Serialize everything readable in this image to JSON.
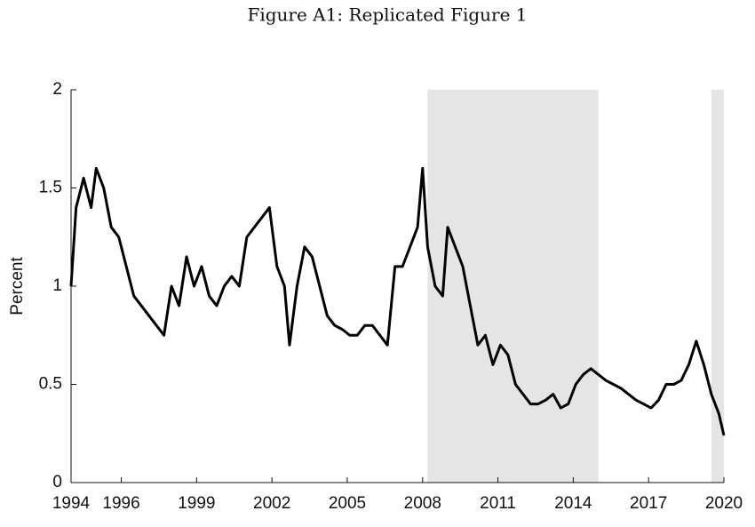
{
  "chart_data": {
    "type": "line",
    "title": "Figure A1: Replicated Figure 1",
    "y_label": "Percent",
    "xlim": [
      1994,
      2020
    ],
    "xticks": [
      1994,
      1996,
      1999,
      2002,
      2005,
      2008,
      2011,
      2014,
      2017,
      2020
    ],
    "ylim": [
      0,
      2
    ],
    "yticks": [
      0,
      0.5,
      1,
      1.5,
      2
    ],
    "shaded": [
      [
        2008.2,
        2015.0
      ],
      [
        2019.5,
        2020
      ]
    ],
    "shade_color": "#e5e5e5",
    "series": [
      {
        "name": "Percent",
        "color": "#000000",
        "x": [
          1994.0,
          1994.2,
          1994.5,
          1994.8,
          1995.0,
          1995.3,
          1995.6,
          1995.9,
          1996.2,
          1996.5,
          1996.8,
          1997.1,
          1997.4,
          1997.7,
          1998.0,
          1998.3,
          1998.6,
          1998.9,
          1999.2,
          1999.5,
          1999.8,
          2000.1,
          2000.4,
          2000.7,
          2001.0,
          2001.3,
          2001.6,
          2001.9,
          2002.2,
          2002.5,
          2002.7,
          2003.0,
          2003.3,
          2003.6,
          2003.9,
          2004.2,
          2004.5,
          2004.8,
          2005.1,
          2005.4,
          2005.7,
          2006.0,
          2006.3,
          2006.6,
          2006.9,
          2007.2,
          2007.5,
          2007.8,
          2008.0,
          2008.2,
          2008.5,
          2008.8,
          2009.0,
          2009.3,
          2009.6,
          2009.9,
          2010.2,
          2010.5,
          2010.8,
          2011.1,
          2011.4,
          2011.7,
          2012.0,
          2012.3,
          2012.6,
          2012.9,
          2013.2,
          2013.5,
          2013.8,
          2014.1,
          2014.4,
          2014.7,
          2015.0,
          2015.3,
          2015.6,
          2015.9,
          2016.2,
          2016.5,
          2016.8,
          2017.1,
          2017.4,
          2017.7,
          2018.0,
          2018.3,
          2018.6,
          2018.9,
          2019.2,
          2019.5,
          2019.8,
          2020.0
        ],
        "values": [
          1.0,
          1.4,
          1.55,
          1.4,
          1.6,
          1.5,
          1.3,
          1.25,
          1.1,
          0.95,
          0.9,
          0.85,
          0.8,
          0.75,
          1.0,
          0.9,
          1.15,
          1.0,
          1.1,
          0.95,
          0.9,
          1.0,
          1.05,
          1.0,
          1.25,
          1.3,
          1.35,
          1.4,
          1.1,
          1.0,
          0.7,
          1.0,
          1.2,
          1.15,
          1.0,
          0.85,
          0.8,
          0.78,
          0.75,
          0.75,
          0.8,
          0.8,
          0.75,
          0.7,
          1.1,
          1.1,
          1.2,
          1.3,
          1.6,
          1.2,
          1.0,
          0.95,
          1.3,
          1.2,
          1.1,
          0.9,
          0.7,
          0.75,
          0.6,
          0.7,
          0.65,
          0.5,
          0.45,
          0.4,
          0.4,
          0.42,
          0.45,
          0.38,
          0.4,
          0.5,
          0.55,
          0.58,
          0.55,
          0.52,
          0.5,
          0.48,
          0.45,
          0.42,
          0.4,
          0.38,
          0.42,
          0.5,
          0.5,
          0.52,
          0.6,
          0.72,
          0.6,
          0.45,
          0.35,
          0.24
        ]
      }
    ]
  }
}
